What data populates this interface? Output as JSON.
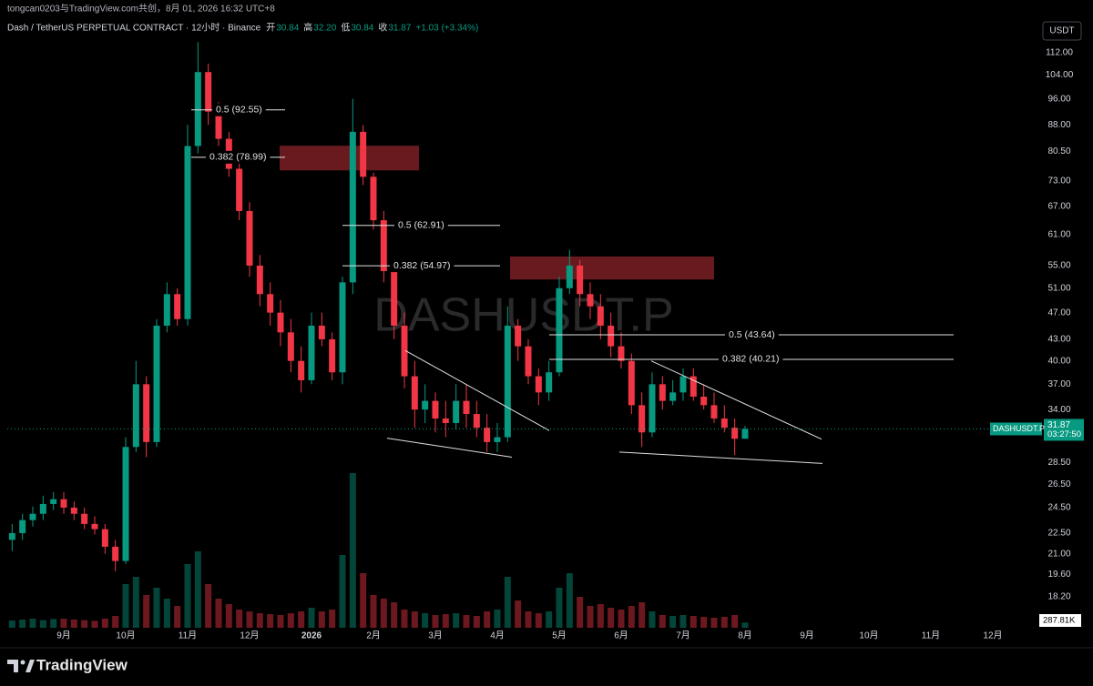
{
  "header": {
    "attribution": "tongcan0203与TradingView.com共创，8月 01, 2026 16:32 UTC+8",
    "symbol": "Dash / TetherUS PERPETUAL CONTRACT · 12小时 · Binance",
    "open_label": "开",
    "open": "30.84",
    "high_label": "高",
    "high": "32.20",
    "low_label": "低",
    "low": "30.84",
    "close_label": "收",
    "close": "31.87",
    "change": "+1.03 (+3.34%)",
    "currency": "USDT"
  },
  "chart_data": {
    "type": "candlestick",
    "watermark": "DASHUSDT.P",
    "log": true,
    "grid": false,
    "categories": [
      null,
      null,
      null,
      null,
      null,
      "9月",
      null,
      null,
      null,
      null,
      null,
      "10月",
      null,
      null,
      null,
      null,
      null,
      "11月",
      null,
      null,
      null,
      null,
      null,
      "12月",
      null,
      null,
      null,
      null,
      null,
      "2026",
      null,
      null,
      null,
      null,
      null,
      "2月",
      null,
      null,
      null,
      null,
      null,
      "3月",
      null,
      null,
      null,
      null,
      null,
      "4月",
      null,
      null,
      null,
      null,
      null,
      "5月",
      null,
      null,
      null,
      null,
      null,
      "6月",
      null,
      null,
      null,
      null,
      null,
      "7月",
      null,
      null,
      null,
      null,
      null,
      "8月",
      null,
      null,
      null,
      null,
      null,
      "9月",
      null,
      null,
      null,
      null,
      null,
      "10月",
      null,
      null,
      null,
      null,
      null,
      "11月",
      null,
      null,
      null,
      null,
      null,
      "12月",
      null,
      null
    ],
    "series": [
      {
        "name": "DASHUSDT.P",
        "up_color": "#089981",
        "down_color": "#f23645",
        "countdown": "03:27:50",
        "volume_label": "287.81K",
        "open": [
          22,
          22.5,
          23.5,
          24,
          24.8,
          25.2,
          24.5,
          24,
          23.2,
          22.8,
          21.5,
          20.5,
          30,
          37,
          30.5,
          45,
          50,
          46,
          82,
          105,
          92,
          84,
          76,
          66,
          55,
          50,
          47,
          44,
          40,
          37.5,
          45,
          43,
          38.5,
          52,
          86,
          74,
          64,
          54,
          45,
          38,
          34,
          35,
          33,
          32.5,
          35,
          33.5,
          32,
          30.5,
          31,
          45,
          42,
          38,
          36,
          38.5,
          51,
          55,
          50,
          48,
          45,
          42,
          40,
          34.5,
          31.5,
          37,
          35,
          36,
          38,
          35.5,
          34.5,
          33,
          32,
          30.84,
          null,
          null,
          null,
          null,
          null,
          null,
          null,
          null,
          null,
          null,
          null,
          null,
          null,
          null,
          null,
          null,
          null,
          null,
          null,
          null,
          null,
          null,
          null,
          null,
          null,
          null
        ],
        "high": [
          23.2,
          24,
          24.6,
          25.5,
          25.8,
          25.8,
          25,
          24.5,
          23.8,
          23.2,
          22,
          31,
          40,
          38,
          46,
          52,
          51,
          88,
          116,
          108,
          95,
          86,
          78,
          68,
          57,
          52,
          49,
          46,
          42,
          47,
          47,
          44,
          53,
          96,
          88,
          75,
          66,
          56,
          47,
          40,
          37,
          36,
          35,
          37,
          37,
          35,
          33.5,
          32.5,
          48,
          46,
          43,
          39,
          40,
          53,
          58,
          56,
          52,
          50,
          47,
          44,
          41,
          36,
          38.5,
          38,
          37.5,
          39,
          39,
          37,
          36,
          34.5,
          33,
          32.2,
          null,
          null,
          null,
          null,
          null,
          null,
          null,
          null,
          null,
          null,
          null,
          null,
          null,
          null,
          null,
          null,
          null,
          null,
          null,
          null,
          null,
          null,
          null,
          null,
          null,
          null
        ],
        "low": [
          21.2,
          22,
          23,
          23.5,
          24.3,
          24,
          23.5,
          22.8,
          22.4,
          21,
          19.8,
          20.3,
          29.5,
          29,
          30,
          44,
          45,
          45,
          80,
          88,
          82,
          74,
          64,
          53,
          48,
          45,
          42,
          38.5,
          36,
          37,
          42,
          37.5,
          37,
          50,
          72,
          62,
          52,
          43,
          36.5,
          32,
          32.5,
          31.5,
          31,
          31.8,
          32,
          31,
          29.5,
          29.5,
          30.5,
          40,
          37,
          34.5,
          35,
          38,
          50,
          48,
          46,
          43,
          40.5,
          39,
          33.5,
          30,
          31,
          34,
          34.5,
          35,
          35,
          34,
          32.5,
          31.5,
          29.2,
          30.84,
          null,
          null,
          null,
          null,
          null,
          null,
          null,
          null,
          null,
          null,
          null,
          null,
          null,
          null,
          null,
          null,
          null,
          null,
          null,
          null,
          null,
          null,
          null,
          null,
          null,
          null
        ],
        "close": [
          22.5,
          23.5,
          24,
          24.8,
          25.2,
          24.5,
          24,
          23.2,
          22.8,
          21.5,
          20.5,
          30,
          37,
          30.5,
          45,
          50,
          46,
          82,
          105,
          92,
          84,
          76,
          66,
          55,
          50,
          47,
          44,
          40,
          37.5,
          45,
          43,
          38.5,
          52,
          86,
          74,
          64,
          54,
          45,
          38,
          34,
          35,
          33,
          32.5,
          35,
          33.5,
          32,
          30.5,
          31,
          45,
          42,
          38,
          36,
          38.5,
          51,
          55,
          50,
          48,
          45,
          42,
          40,
          34.5,
          31.5,
          37,
          35,
          36,
          38,
          35.5,
          34.5,
          33,
          32,
          30.84,
          31.87,
          null,
          null,
          null,
          null,
          null,
          null,
          null,
          null,
          null,
          null,
          null,
          null,
          null,
          null,
          null,
          null,
          null,
          null,
          null,
          null,
          null,
          null,
          null,
          null,
          null,
          null
        ],
        "volume": [
          400,
          450,
          500,
          420,
          480,
          500,
          450,
          420,
          380,
          500,
          650,
          2400,
          2800,
          1800,
          2200,
          1600,
          1200,
          3500,
          4200,
          2400,
          1600,
          1300,
          1000,
          900,
          800,
          750,
          700,
          800,
          900,
          1100,
          900,
          1000,
          4000,
          8500,
          3000,
          1800,
          1600,
          1400,
          1000,
          900,
          800,
          700,
          750,
          800,
          700,
          650,
          900,
          1000,
          2800,
          1500,
          900,
          800,
          900,
          2200,
          3000,
          1700,
          1200,
          1300,
          1100,
          1000,
          1200,
          1400,
          900,
          700,
          650,
          700,
          650,
          600,
          550,
          600,
          700,
          287.81,
          null,
          null,
          null,
          null,
          null,
          null,
          null,
          null,
          null,
          null,
          null,
          null,
          null,
          null,
          null,
          null,
          null,
          null,
          null,
          null,
          null,
          null,
          null,
          null,
          null,
          null
        ]
      }
    ],
    "ylim": [
      16.4,
      125.7
    ],
    "yticks": [
      {
        "value": 112,
        "label": "112.00"
      },
      {
        "value": 104,
        "label": "104.00"
      },
      {
        "value": 96,
        "label": "96.00"
      },
      {
        "value": 88,
        "label": "88.00"
      },
      {
        "value": 80.5,
        "label": "80.50"
      },
      {
        "value": 73,
        "label": "73.00"
      },
      {
        "value": 67,
        "label": "67.00"
      },
      {
        "value": 61,
        "label": "61.00"
      },
      {
        "value": 55,
        "label": "55.00"
      },
      {
        "value": 51,
        "label": "51.00"
      },
      {
        "value": 47,
        "label": "47.00"
      },
      {
        "value": 43,
        "label": "43.00"
      },
      {
        "value": 40,
        "label": "40.00"
      },
      {
        "value": 37,
        "label": "37.00"
      },
      {
        "value": 34,
        "label": "34.00"
      },
      {
        "value": 28.5,
        "label": "28.50"
      },
      {
        "value": 26.5,
        "label": "26.50"
      },
      {
        "value": 24.5,
        "label": "24.50"
      },
      {
        "value": 22.5,
        "label": "22.50"
      },
      {
        "value": 21,
        "label": "21.00"
      },
      {
        "value": 19.6,
        "label": "19.60"
      },
      {
        "value": 18.2,
        "label": "18.20"
      }
    ],
    "y2lim": [
      0,
      12000
    ],
    "fib_levels": [
      {
        "label": "0.5 (92.55)",
        "value": 92.55
      },
      {
        "label": "0.382 (78.99)",
        "value": 78.99
      },
      {
        "label": "0.5 (62.91)",
        "value": 62.91
      },
      {
        "label": "0.382 (54.97)",
        "value": 54.97
      },
      {
        "label": "0.5 (43.64)",
        "value": 43.64
      },
      {
        "label": "0.382 (40.21)",
        "value": 40.21
      }
    ],
    "zones": [
      {
        "low": 75.6,
        "high": 82.1,
        "color": "#7a1f25"
      },
      {
        "low": 52.5,
        "high": 56.7,
        "color": "#7a1f25"
      }
    ],
    "trendlines": [
      {
        "from": 41.4,
        "to": 31.7
      },
      {
        "from": 30.9,
        "to": 29.0
      },
      {
        "from": 40.0,
        "to": 30.8
      },
      {
        "from": 29.5,
        "to": 28.4
      }
    ]
  },
  "footer": {
    "logo": "TradingView"
  }
}
